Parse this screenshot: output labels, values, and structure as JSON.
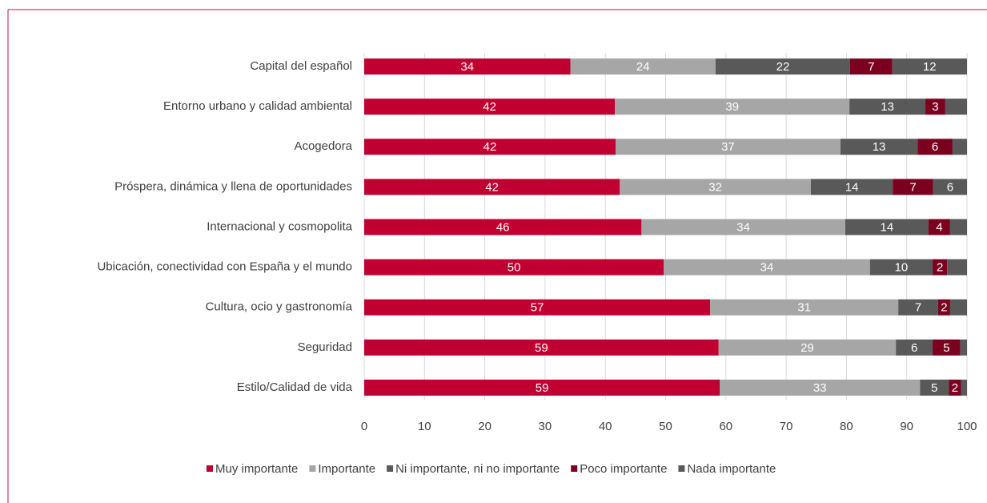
{
  "chart_data": {
    "type": "bar",
    "orientation": "horizontal",
    "stacked": true,
    "categories": [
      "Capital del español",
      "Entorno urbano y calidad ambiental",
      "Acogedora",
      "Próspera, dinámica y llena de oportunidades",
      "Internacional y cosmopolita",
      "Ubicación, conectividad con España y el mundo",
      "Cultura, ocio y gastronomía",
      "Seguridad",
      "Estilo/Calidad de vida"
    ],
    "series": [
      {
        "name": "Muy importante",
        "color": "#c00030",
        "values": [
          34.2,
          41.6,
          41.7,
          42.4,
          46.0,
          49.7,
          57.4,
          58.8,
          59.0
        ],
        "value_labels": [
          "34",
          "42",
          "42",
          "42",
          "46",
          "50",
          "57",
          "59",
          "59"
        ]
      },
      {
        "name": "Importante",
        "color": "#a6a6a6",
        "values": [
          24.1,
          38.9,
          37.3,
          31.7,
          33.8,
          34.2,
          31.2,
          29.4,
          33.2
        ],
        "value_labels": [
          "24",
          "39",
          "37",
          "32",
          "34",
          "34",
          "31",
          "29",
          "33"
        ]
      },
      {
        "name": "Ni importante, ni no importante",
        "color": "#595959",
        "values": [
          22.3,
          12.6,
          12.8,
          13.6,
          13.8,
          10.4,
          6.6,
          6.1,
          4.8
        ],
        "value_labels": [
          "22",
          "13",
          "13",
          "14",
          "14",
          "10",
          "7",
          "6",
          "5"
        ]
      },
      {
        "name": "Poco importante",
        "color": "#7b0020",
        "values": [
          7.0,
          3.3,
          5.8,
          6.7,
          3.6,
          2.4,
          2.0,
          4.6,
          2.0
        ],
        "value_labels": [
          "7",
          "3",
          "6",
          "7",
          "4",
          "2",
          "2",
          "5",
          "2"
        ]
      },
      {
        "name": "Nada importante",
        "color": "#595959",
        "values": [
          12.4,
          3.6,
          2.4,
          5.6,
          2.8,
          3.3,
          2.8,
          1.1,
          1.0
        ],
        "value_labels": [
          "12",
          null,
          null,
          "6",
          null,
          null,
          null,
          null,
          null
        ]
      }
    ],
    "xlim": [
      0,
      100
    ],
    "xticks": [
      0,
      10,
      20,
      30,
      40,
      50,
      60,
      70,
      80,
      90,
      100
    ],
    "grid": true,
    "legend": "bottom"
  }
}
